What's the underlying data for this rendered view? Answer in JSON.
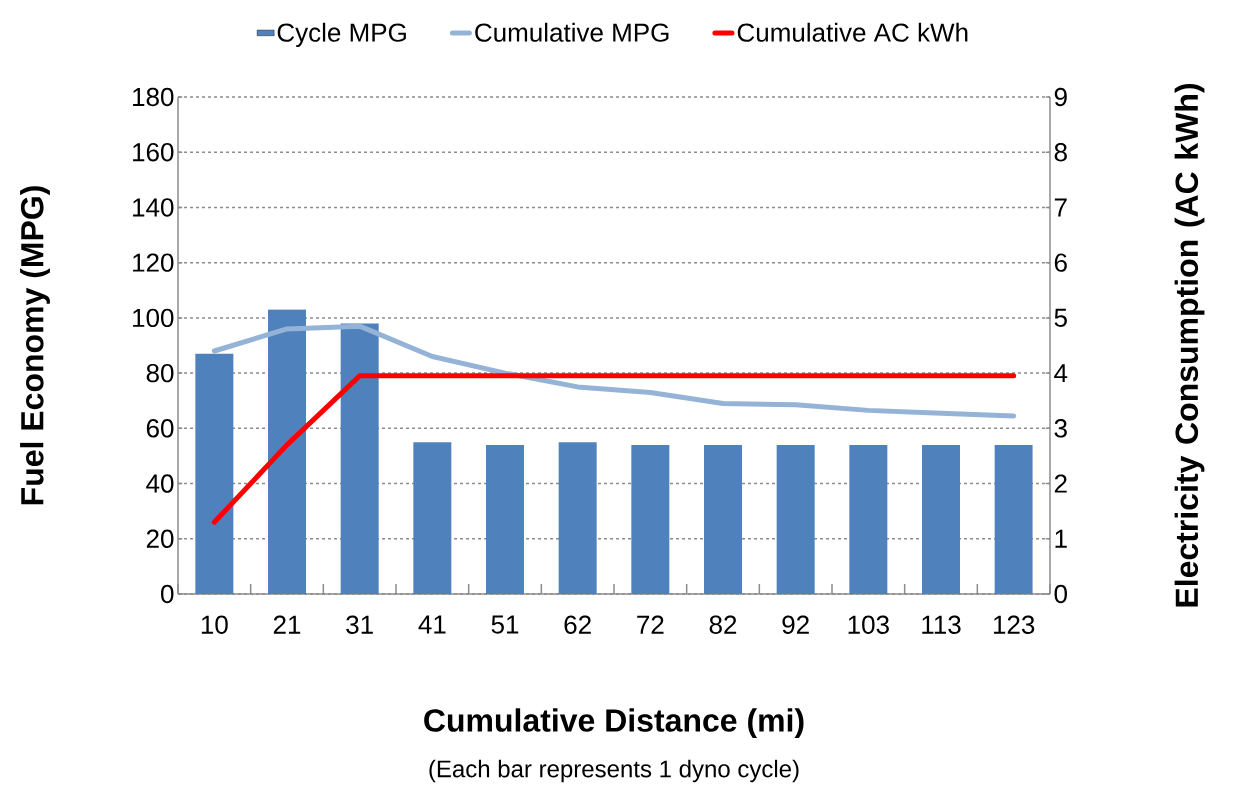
{
  "chart_data": {
    "type": "bar",
    "xlabel": "Cumulative Distance (mi)",
    "ylabel": "Fuel Economy (MPG)",
    "y2label": "Electricity Consumption (AC kWh)",
    "annotations": [
      "(Each bar represents 1 dyno cycle)"
    ],
    "categories": [
      "10",
      "21",
      "31",
      "41",
      "51",
      "62",
      "72",
      "82",
      "92",
      "103",
      "113",
      "123"
    ],
    "series": [
      {
        "name": "Cycle MPG",
        "color": "#4f81bd",
        "values": [
          87,
          103,
          98,
          55,
          54,
          55,
          54,
          54,
          54,
          54,
          54,
          54
        ]
      },
      {
        "name": "Cumulative MPG",
        "type": "line",
        "color": "#95b3d7",
        "values": [
          88,
          96,
          97,
          86,
          80,
          75,
          73,
          69,
          68.5,
          66.5,
          65.5,
          64.5
        ]
      },
      {
        "name": "Cumulative AC kWh",
        "type": "line",
        "color": "#ff0000",
        "axis": "y2",
        "values": [
          1.3,
          2.7,
          3.95,
          3.95,
          3.95,
          3.95,
          3.95,
          3.95,
          3.95,
          3.95,
          3.95,
          3.95
        ]
      }
    ],
    "ylim": [
      0,
      180
    ],
    "yticks": [
      0,
      20,
      40,
      60,
      80,
      100,
      120,
      140,
      160,
      180
    ],
    "y2lim": [
      0,
      9
    ],
    "y2ticks": [
      0,
      1,
      2,
      3,
      4,
      5,
      6,
      7,
      8,
      9
    ],
    "grid": "y",
    "legend": "top"
  }
}
